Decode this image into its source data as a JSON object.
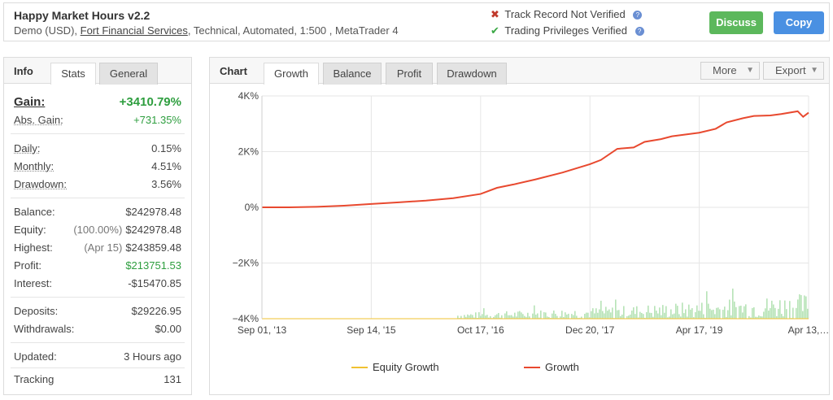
{
  "header": {
    "title": "Happy Market Hours v2.2",
    "subtitle_prefix": "Demo (USD), ",
    "broker": "Fort Financial Services",
    "subtitle_suffix": ", Technical, Automated, 1:500 , MetaTrader 4",
    "track_record": "Track Record Not Verified",
    "trading_privileges": "Trading Privileges Verified",
    "discuss_label": "Discuss",
    "copy_label": "Copy"
  },
  "info_panel": {
    "heading": "Info",
    "tabs": [
      "Stats",
      "General"
    ],
    "gain_label": "Gain:",
    "gain_value": "+3410.79%",
    "abs_gain_label": "Abs. Gain:",
    "abs_gain_value": "+731.35%",
    "daily_label": "Daily:",
    "daily_value": "0.15%",
    "monthly_label": "Monthly:",
    "monthly_value": "4.51%",
    "drawdown_label": "Drawdown:",
    "drawdown_value": "3.56%",
    "balance_label": "Balance:",
    "balance_value": "$242978.48",
    "equity_label": "Equity:",
    "equity_note": "(100.00%)",
    "equity_value": "$242978.48",
    "highest_label": "Highest:",
    "highest_note": "(Apr 15)",
    "highest_value": "$243859.48",
    "profit_label": "Profit:",
    "profit_value": "$213751.53",
    "interest_label": "Interest:",
    "interest_value": "-$15470.85",
    "deposits_label": "Deposits:",
    "deposits_value": "$29226.95",
    "withdrawals_label": "Withdrawals:",
    "withdrawals_value": "$0.00",
    "updated_label": "Updated:",
    "updated_value": "3 Hours ago",
    "tracking_label": "Tracking",
    "tracking_value": "131"
  },
  "chart_panel": {
    "heading": "Chart",
    "tabs": [
      "Growth",
      "Balance",
      "Profit",
      "Drawdown"
    ],
    "more_label": "More",
    "export_label": "Export"
  },
  "colors": {
    "growth": "#e8492f",
    "equity_growth": "#f1c232",
    "volume_bars": "#b6e3b6",
    "gain_green": "#2e9e3f",
    "discuss_button": "#5cb85c",
    "copy_button": "#4a90e2"
  },
  "chart_data": {
    "type": "line",
    "y_tick_labels": [
      "4K%",
      "2K%",
      "0%",
      "−2K%",
      "−4K%"
    ],
    "ylim": [
      -4000,
      4000
    ],
    "x_tick_labels": [
      "Sep 01, '13",
      "Sep 14, '15",
      "Oct 17, '16",
      "Dec 20, '17",
      "Apr 17, '19",
      "Apr 13,…"
    ],
    "x_tick_positions": [
      0,
      0.2,
      0.4,
      0.6,
      0.8,
      1.0
    ],
    "legend": [
      "Equity Growth",
      "Growth"
    ],
    "legend_position": "bottom",
    "grid": true,
    "series": [
      {
        "name": "Growth",
        "x": [
          0,
          0.05,
          0.1,
          0.15,
          0.2,
          0.25,
          0.3,
          0.35,
          0.4,
          0.43,
          0.46,
          0.5,
          0.55,
          0.6,
          0.62,
          0.65,
          0.68,
          0.7,
          0.73,
          0.75,
          0.8,
          0.83,
          0.85,
          0.88,
          0.9,
          0.93,
          0.95,
          0.98,
          0.99,
          1.0
        ],
        "values": [
          0,
          0,
          20,
          60,
          120,
          180,
          240,
          330,
          480,
          700,
          820,
          1000,
          1250,
          1550,
          1700,
          2100,
          2150,
          2350,
          2450,
          2550,
          2680,
          2820,
          3050,
          3200,
          3280,
          3300,
          3350,
          3450,
          3250,
          3400
        ]
      },
      {
        "name": "Equity Growth",
        "x": [
          0,
          1.0
        ],
        "values": [
          -4000,
          -4000
        ]
      }
    ]
  }
}
